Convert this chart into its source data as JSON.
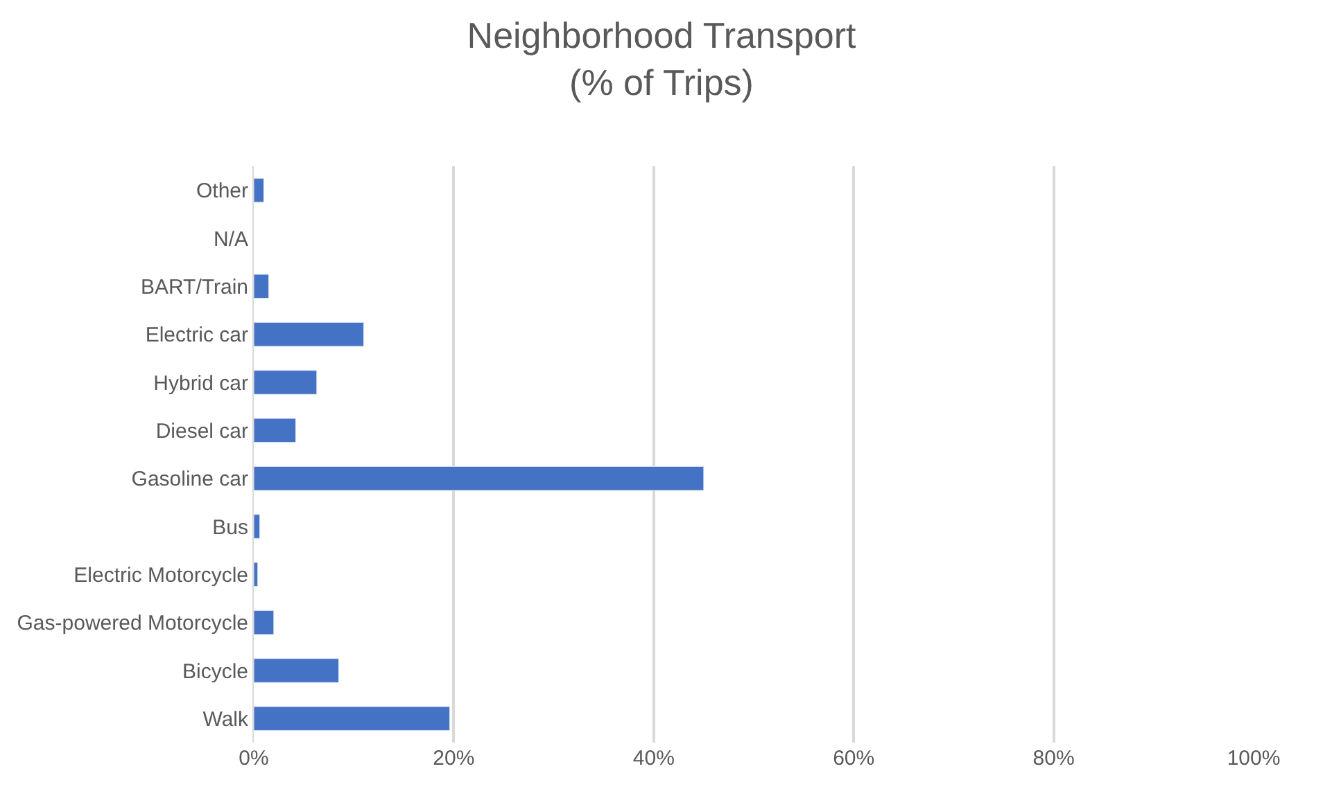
{
  "chart_data": {
    "type": "bar",
    "orientation": "horizontal",
    "title": "Neighborhood Transport\n(% of Trips)",
    "categories": [
      "Other",
      "N/A",
      "BART/Train",
      "Electric car",
      "Hybrid car",
      "Diesel car",
      "Gasoline car",
      "Bus",
      "Electric Motorcycle",
      "Gas-powered Motorcycle",
      "Bicycle",
      "Walk"
    ],
    "values": [
      1.0,
      null,
      1.5,
      11.0,
      6.3,
      4.2,
      45.0,
      0.6,
      0.4,
      2.0,
      8.5,
      19.6
    ],
    "color": "#4472c4",
    "xlim": [
      0,
      100
    ],
    "xticks": [
      {
        "value": 0,
        "label": "0%"
      },
      {
        "value": 20,
        "label": "20%"
      },
      {
        "value": 40,
        "label": "40%"
      },
      {
        "value": 60,
        "label": "60%"
      },
      {
        "value": 80,
        "label": "80%"
      },
      {
        "value": 100,
        "label": "100%"
      }
    ],
    "grid": "x"
  }
}
